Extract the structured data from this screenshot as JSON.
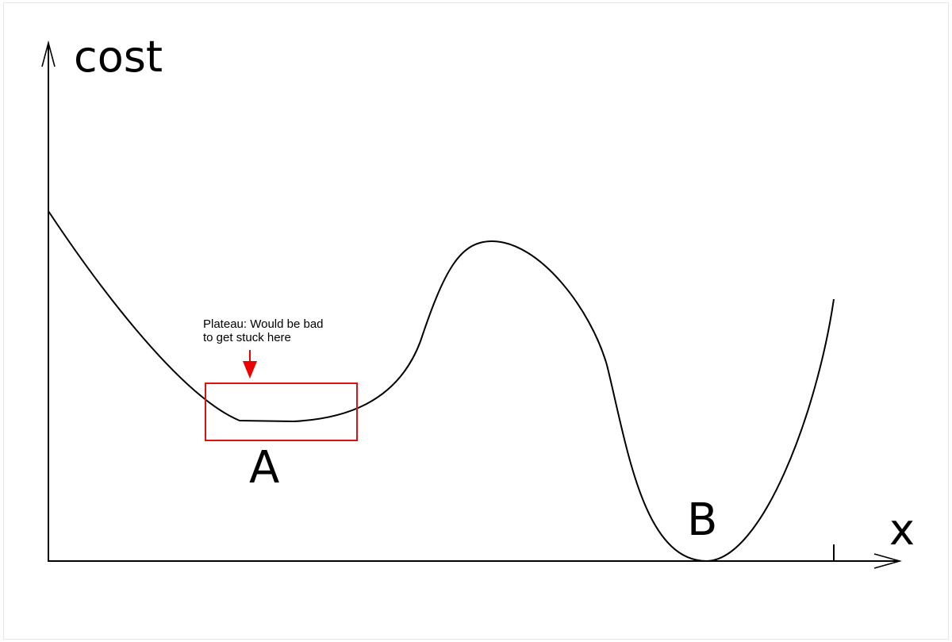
{
  "diagram": {
    "y_axis_label": "cost",
    "x_axis_label": "x",
    "point_a_label": "A",
    "point_b_label": "B",
    "plateau_annotation": {
      "line1": "Plateau: Would be bad",
      "line2": "to get stuck here"
    }
  },
  "colors": {
    "curve": "#000000",
    "axes": "#000000",
    "highlight_box": "#dd1111",
    "arrow": "#ee0000",
    "border": "#e6e6e6"
  }
}
